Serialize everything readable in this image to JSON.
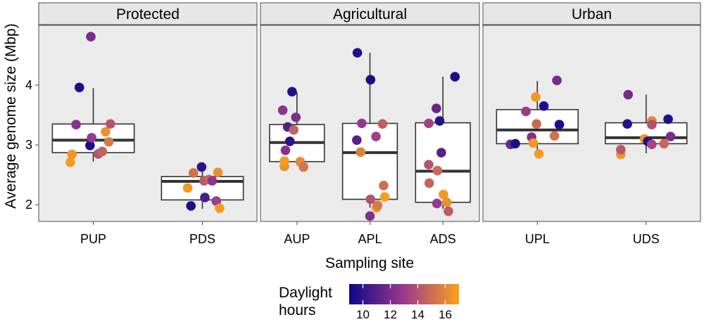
{
  "chart_data": {
    "type": "boxplot-jitter",
    "ylabel": "Average genome size (Mbp)",
    "xlabel": "Sampling site",
    "ylim": [
      1.72,
      5.0
    ],
    "yticks": [
      2,
      3,
      4
    ],
    "ytick_labels": [
      "2",
      "3",
      "4"
    ],
    "grid": false,
    "colors": {
      "panel_bg": "#ebebeb",
      "strip_bg": "#e6e6e6",
      "box_line": "#333333",
      "median_line": "#333333",
      "color_low": "#0d0887",
      "color_mid": "#9c3a8c",
      "color_high": "#f9a11b"
    },
    "legend": {
      "title_line1": "Daylight",
      "title_line2": "hours",
      "range": [
        9,
        17
      ],
      "ticks": [
        10,
        12,
        14,
        16
      ],
      "tick_labels": [
        "10",
        "12",
        "14",
        "16"
      ],
      "placement": "bottom"
    },
    "facets": [
      {
        "label": "Protected",
        "sites": [
          {
            "name": "PUP",
            "box": {
              "q1": 2.87,
              "median": 3.08,
              "q3": 3.35,
              "whisker_low": 2.72,
              "whisker_high": 3.95
            },
            "points": [
              {
                "jit": -0.28,
                "y": 2.71,
                "h": 16.8
              },
              {
                "jit": -0.26,
                "y": 2.84,
                "h": 16.6
              },
              {
                "jit": -0.21,
                "y": 3.34,
                "h": 12.4
              },
              {
                "jit": -0.17,
                "y": 3.96,
                "h": 9.5
              },
              {
                "jit": -0.03,
                "y": 4.81,
                "h": 12.0
              },
              {
                "jit": -0.04,
                "y": 2.99,
                "h": 9.3
              },
              {
                "jit": -0.02,
                "y": 3.12,
                "h": 12.8
              },
              {
                "jit": 0.06,
                "y": 2.85,
                "h": 14.0
              },
              {
                "jit": 0.11,
                "y": 2.89,
                "h": 14.6
              },
              {
                "jit": 0.15,
                "y": 3.22,
                "h": 16.4
              },
              {
                "jit": 0.21,
                "y": 3.35,
                "h": 14.1
              },
              {
                "jit": 0.19,
                "y": 3.05,
                "h": 15.5
              }
            ]
          },
          {
            "name": "PDS",
            "box": {
              "q1": 2.08,
              "median": 2.39,
              "q3": 2.47,
              "whisker_low": 1.93,
              "whisker_high": 2.63
            },
            "points": [
              {
                "jit": -0.18,
                "y": 2.28,
                "h": 16.7
              },
              {
                "jit": -0.11,
                "y": 2.53,
                "h": 15.2
              },
              {
                "jit": -0.14,
                "y": 1.98,
                "h": 9.5
              },
              {
                "jit": -0.01,
                "y": 2.63,
                "h": 9.8
              },
              {
                "jit": 0.02,
                "y": 2.4,
                "h": 14.2
              },
              {
                "jit": 0.03,
                "y": 2.12,
                "h": 10.7
              },
              {
                "jit": 0.08,
                "y": 2.42,
                "h": 14.8
              },
              {
                "jit": 0.12,
                "y": 2.4,
                "h": 12.6
              },
              {
                "jit": 0.19,
                "y": 2.54,
                "h": 16.3
              },
              {
                "jit": 0.17,
                "y": 2.06,
                "h": 13.1
              },
              {
                "jit": 0.21,
                "y": 1.94,
                "h": 16.8
              }
            ]
          }
        ]
      },
      {
        "label": "Agricultural",
        "sites": [
          {
            "name": "AUP",
            "box": {
              "q1": 2.72,
              "median": 3.04,
              "q3": 3.34,
              "whisker_low": 2.66,
              "whisker_high": 3.88
            },
            "points": [
              {
                "jit": -0.26,
                "y": 3.58,
                "h": 12.5
              },
              {
                "jit": -0.23,
                "y": 2.64,
                "h": 16.4
              },
              {
                "jit": -0.23,
                "y": 2.73,
                "h": 16.8
              },
              {
                "jit": -0.21,
                "y": 2.91,
                "h": 12.3
              },
              {
                "jit": -0.17,
                "y": 3.3,
                "h": 10.9
              },
              {
                "jit": -0.13,
                "y": 3.06,
                "h": 9.8
              },
              {
                "jit": -0.09,
                "y": 3.89,
                "h": 9.6
              },
              {
                "jit": -0.06,
                "y": 3.25,
                "h": 14.6
              },
              {
                "jit": -0.02,
                "y": 3.46,
                "h": 12.1
              },
              {
                "jit": 0.06,
                "y": 2.72,
                "h": 16.1
              },
              {
                "jit": 0.12,
                "y": 2.63,
                "h": 15.3
              }
            ]
          },
          {
            "name": "APL",
            "box": {
              "q1": 2.09,
              "median": 2.87,
              "q3": 3.36,
              "whisker_low": 1.95,
              "whisker_high": 4.54
            },
            "points": [
              {
                "jit": -0.24,
                "y": 3.08,
                "h": 11.1
              },
              {
                "jit": -0.23,
                "y": 4.54,
                "h": 9.6
              },
              {
                "jit": -0.17,
                "y": 2.88,
                "h": 15.8
              },
              {
                "jit": -0.15,
                "y": 3.36,
                "h": 12.9
              },
              {
                "jit": 0.01,
                "y": 2.09,
                "h": 13.9
              },
              {
                "jit": 0.0,
                "y": 1.81,
                "h": 12.2
              },
              {
                "jit": 0.01,
                "y": 4.09,
                "h": 9.4
              },
              {
                "jit": 0.11,
                "y": 3.14,
                "h": 13.2
              },
              {
                "jit": 0.12,
                "y": 1.95,
                "h": 16.5
              },
              {
                "jit": 0.14,
                "y": 1.99,
                "h": 15.6
              },
              {
                "jit": 0.23,
                "y": 3.35,
                "h": 14.5
              },
              {
                "jit": 0.25,
                "y": 2.32,
                "h": 15.1
              },
              {
                "jit": 0.27,
                "y": 2.13,
                "h": 16.8
              }
            ]
          },
          {
            "name": "ADS",
            "box": {
              "q1": 2.04,
              "median": 2.56,
              "q3": 3.37,
              "whisker_low": 1.93,
              "whisker_high": 4.14
            },
            "points": [
              {
                "jit": -0.26,
                "y": 2.67,
                "h": 14.1
              },
              {
                "jit": -0.26,
                "y": 3.36,
                "h": 13.2
              },
              {
                "jit": -0.25,
                "y": 2.36,
                "h": 14.7
              },
              {
                "jit": -0.12,
                "y": 3.61,
                "h": 11.4
              },
              {
                "jit": -0.11,
                "y": 2.02,
                "h": 12.9
              },
              {
                "jit": -0.1,
                "y": 2.57,
                "h": 14.9
              },
              {
                "jit": -0.06,
                "y": 3.4,
                "h": 9.7
              },
              {
                "jit": -0.03,
                "y": 2.87,
                "h": 11.0
              },
              {
                "jit": 0.01,
                "y": 2.17,
                "h": 16.7
              },
              {
                "jit": 0.07,
                "y": 2.04,
                "h": 16.4
              },
              {
                "jit": 0.1,
                "y": 1.89,
                "h": 14.3
              },
              {
                "jit": 0.22,
                "y": 4.14,
                "h": 9.5
              }
            ]
          }
        ]
      },
      {
        "label": "Urban",
        "sites": [
          {
            "name": "UPL",
            "box": {
              "q1": 3.02,
              "median": 3.25,
              "q3": 3.59,
              "whisker_low": 2.85,
              "whisker_high": 4.07
            },
            "points": [
              {
                "jit": -0.33,
                "y": 3.01,
                "h": 11.6
              },
              {
                "jit": -0.27,
                "y": 3.02,
                "h": 9.5
              },
              {
                "jit": -0.14,
                "y": 3.56,
                "h": 13.0
              },
              {
                "jit": -0.07,
                "y": 3.13,
                "h": 12.2
              },
              {
                "jit": -0.02,
                "y": 3.8,
                "h": 16.6
              },
              {
                "jit": -0.01,
                "y": 3.35,
                "h": 14.9
              },
              {
                "jit": -0.05,
                "y": 3.03,
                "h": 16.6
              },
              {
                "jit": 0.02,
                "y": 2.85,
                "h": 16.8
              },
              {
                "jit": 0.08,
                "y": 3.65,
                "h": 9.6
              },
              {
                "jit": 0.24,
                "y": 4.08,
                "h": 11.9
              },
              {
                "jit": 0.21,
                "y": 3.15,
                "h": 15.2
              },
              {
                "jit": 0.27,
                "y": 3.34,
                "h": 9.4
              }
            ]
          },
          {
            "name": "UDS",
            "box": {
              "q1": 3.02,
              "median": 3.12,
              "q3": 3.37,
              "whisker_low": 2.86,
              "whisker_high": 3.84
            },
            "points": [
              {
                "jit": -0.31,
                "y": 2.84,
                "h": 16.7
              },
              {
                "jit": -0.31,
                "y": 2.92,
                "h": 14.2
              },
              {
                "jit": -0.22,
                "y": 3.84,
                "h": 11.8
              },
              {
                "jit": -0.23,
                "y": 3.35,
                "h": 9.7
              },
              {
                "jit": -0.02,
                "y": 3.1,
                "h": 16.4
              },
              {
                "jit": 0.02,
                "y": 3.06,
                "h": 9.6
              },
              {
                "jit": 0.07,
                "y": 3.4,
                "h": 16.1
              },
              {
                "jit": 0.07,
                "y": 3.34,
                "h": 13.9
              },
              {
                "jit": 0.07,
                "y": 3.01,
                "h": 13.4
              },
              {
                "jit": 0.22,
                "y": 3.02,
                "h": 14.8
              },
              {
                "jit": 0.27,
                "y": 3.43,
                "h": 9.5
              },
              {
                "jit": 0.3,
                "y": 3.14,
                "h": 12.0
              }
            ]
          }
        ]
      }
    ]
  }
}
